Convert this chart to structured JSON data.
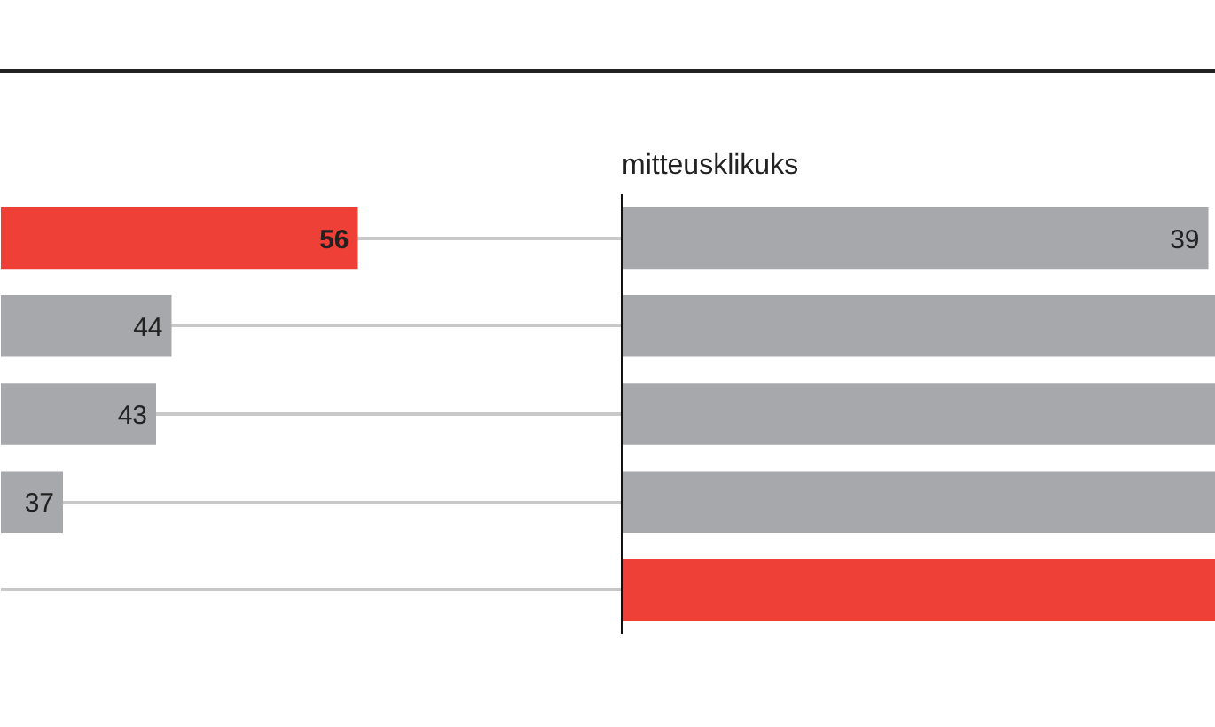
{
  "chart_data": [
    {
      "type": "bar",
      "orientation": "horizontal",
      "categories": [
        null,
        null,
        null,
        null,
        null
      ],
      "values": [
        56,
        44,
        43,
        37,
        null
      ],
      "colors": [
        "#ee4037",
        "#a7a8ab",
        "#a7a8ab",
        "#a7a8ab",
        "#a7a8ab"
      ],
      "xlim": [
        33,
        73
      ],
      "tick_labels": false,
      "grid": "y",
      "data_labels": true
    },
    {
      "type": "bar",
      "orientation": "horizontal",
      "title": "mitteusklikuks",
      "categories": [
        null,
        null,
        null,
        null,
        null
      ],
      "values": [
        39,
        39.5,
        39.5,
        39.5,
        39.5
      ],
      "colors": [
        "#a7a8ab",
        "#a7a8ab",
        "#a7a8ab",
        "#a7a8ab",
        "#ee4037"
      ],
      "xlim": [
        0,
        39.5
      ],
      "tick_labels": false,
      "value_labels": [
        "39",
        null,
        null,
        null,
        null
      ]
    }
  ]
}
